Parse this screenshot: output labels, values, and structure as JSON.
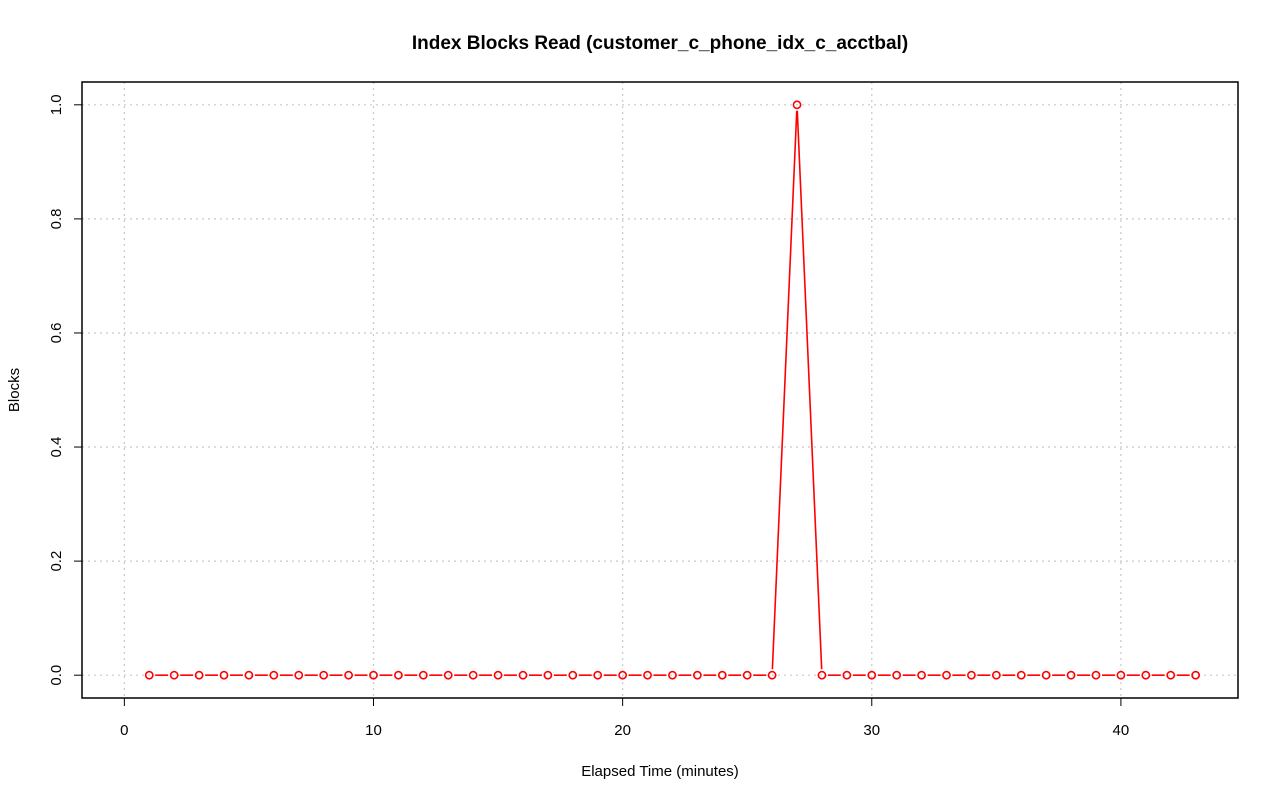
{
  "chart_data": {
    "type": "line",
    "title": "Index Blocks Read (customer_c_phone_idx_c_acctbal)",
    "xlabel": "Elapsed Time (minutes)",
    "ylabel": "Blocks",
    "xlim": [
      -1.7,
      44.7
    ],
    "ylim": [
      -0.04,
      1.04
    ],
    "x_ticks": [
      0,
      10,
      20,
      30,
      40
    ],
    "y_ticks": [
      0.0,
      0.2,
      0.4,
      0.6,
      0.8,
      1.0
    ],
    "x_tick_labels": [
      "0",
      "10",
      "20",
      "30",
      "40"
    ],
    "y_tick_labels": [
      "0.0",
      "0.2",
      "0.4",
      "0.6",
      "0.8",
      "1.0"
    ],
    "grid": true,
    "series": [
      {
        "color": "#ff0000",
        "marker": "open-circle",
        "x": [
          1,
          2,
          3,
          4,
          5,
          6,
          7,
          8,
          9,
          10,
          11,
          12,
          13,
          14,
          15,
          16,
          17,
          18,
          19,
          20,
          21,
          22,
          23,
          24,
          25,
          26,
          27,
          28,
          29,
          30,
          31,
          32,
          33,
          34,
          35,
          36,
          37,
          38,
          39,
          40,
          41,
          42,
          43
        ],
        "values": [
          0,
          0,
          0,
          0,
          0,
          0,
          0,
          0,
          0,
          0,
          0,
          0,
          0,
          0,
          0,
          0,
          0,
          0,
          0,
          0,
          0,
          0,
          0,
          0,
          0,
          0,
          1,
          0,
          0,
          0,
          0,
          0,
          0,
          0,
          0,
          0,
          0,
          0,
          0,
          0,
          0,
          0,
          0
        ]
      }
    ]
  }
}
